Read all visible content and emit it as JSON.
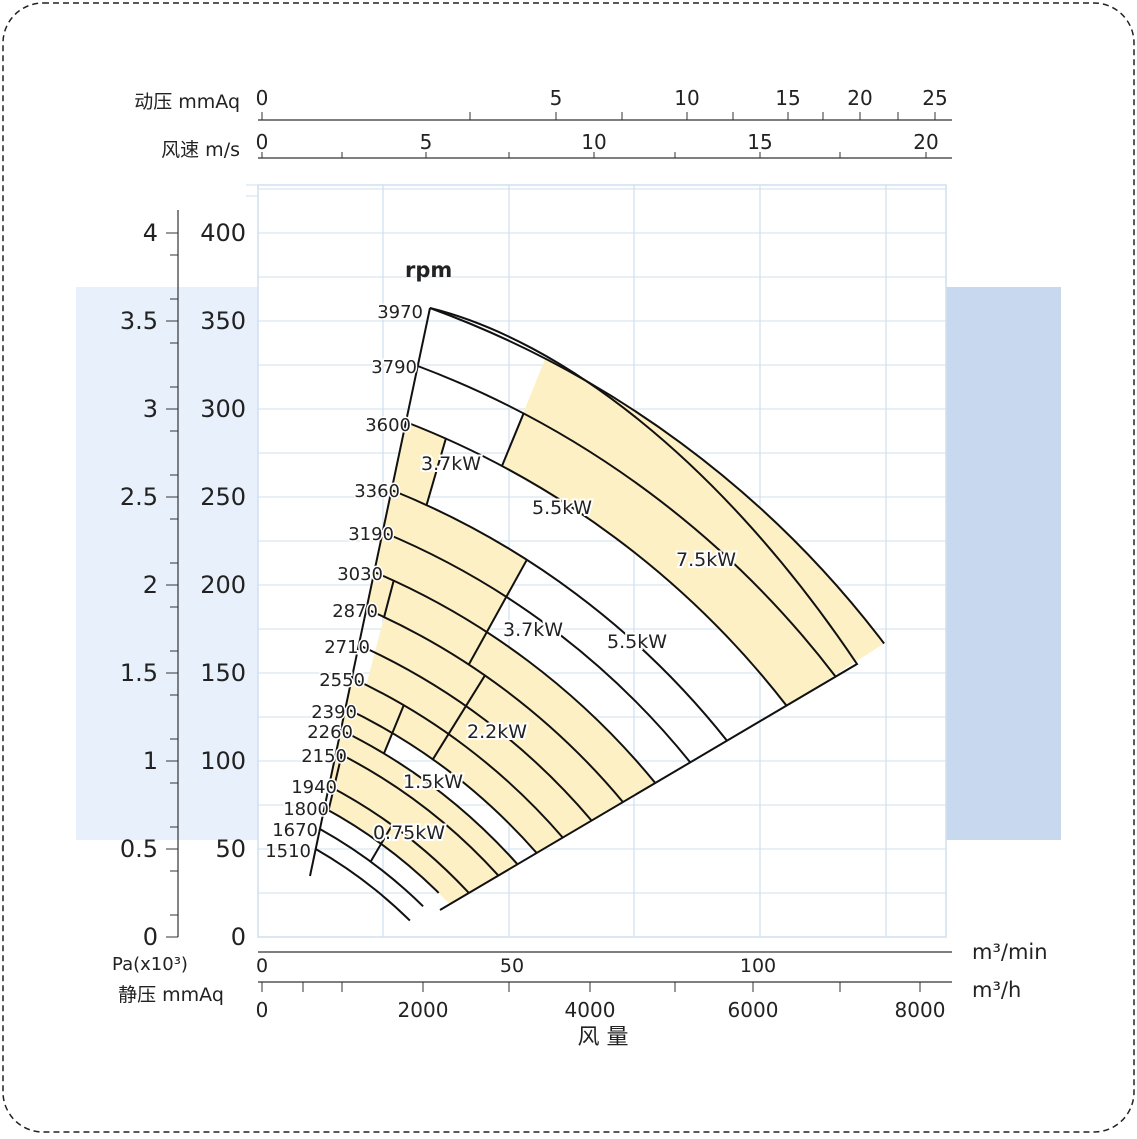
{
  "chart_data": {
    "type": "line",
    "title": "",
    "rpm_label": "rpm",
    "axes": {
      "top_dynamic_pressure": {
        "label": "动压  mmAq",
        "ticks": [
          "0",
          "5",
          "10",
          "15",
          "20",
          "25"
        ]
      },
      "top_velocity": {
        "label": "风速  m/s",
        "ticks": [
          "0",
          "5",
          "10",
          "15",
          "20"
        ]
      },
      "left_pa": {
        "label": "Pa(x10³)",
        "ticks": [
          "0",
          "0.5",
          "1",
          "1.5",
          "2",
          "2.5",
          "3",
          "3.5",
          "4"
        ]
      },
      "left_mmaq": {
        "label": "静压 mmAq",
        "ticks": [
          "0",
          "50",
          "100",
          "150",
          "200",
          "250",
          "300",
          "350",
          "400"
        ],
        "ylim": [
          0,
          400
        ]
      },
      "bottom_min": {
        "unit": "m³/min",
        "ticks": [
          "0",
          "50",
          "100"
        ]
      },
      "bottom_h": {
        "unit": "m³/h",
        "ticks": [
          "0",
          "2000",
          "4000",
          "6000",
          "8000"
        ],
        "xlim": [
          0,
          8200
        ]
      },
      "xlabel": "风  量"
    },
    "speed_lines_rpm": [
      "3970",
      "3790",
      "3600",
      "3360",
      "3190",
      "3030",
      "2870",
      "2710",
      "2550",
      "2390",
      "2260",
      "2150",
      "1940",
      "1800",
      "1670",
      "1510"
    ],
    "power_regions": [
      {
        "label": "7.5kW"
      },
      {
        "label": "5.5kW"
      },
      {
        "label": "3.7kW"
      },
      {
        "label": "5.5kW"
      },
      {
        "label": "3.7kW"
      },
      {
        "label": "2.2kW"
      },
      {
        "label": "1.5kW"
      },
      {
        "label": "0.75kW"
      }
    ],
    "colors": {
      "band": "#fdf0c4",
      "grid": "#cfe0ef",
      "bg_left": "#e8f1fb",
      "bg_right": "#c8d8ee",
      "line": "#111111"
    },
    "grid": true
  }
}
